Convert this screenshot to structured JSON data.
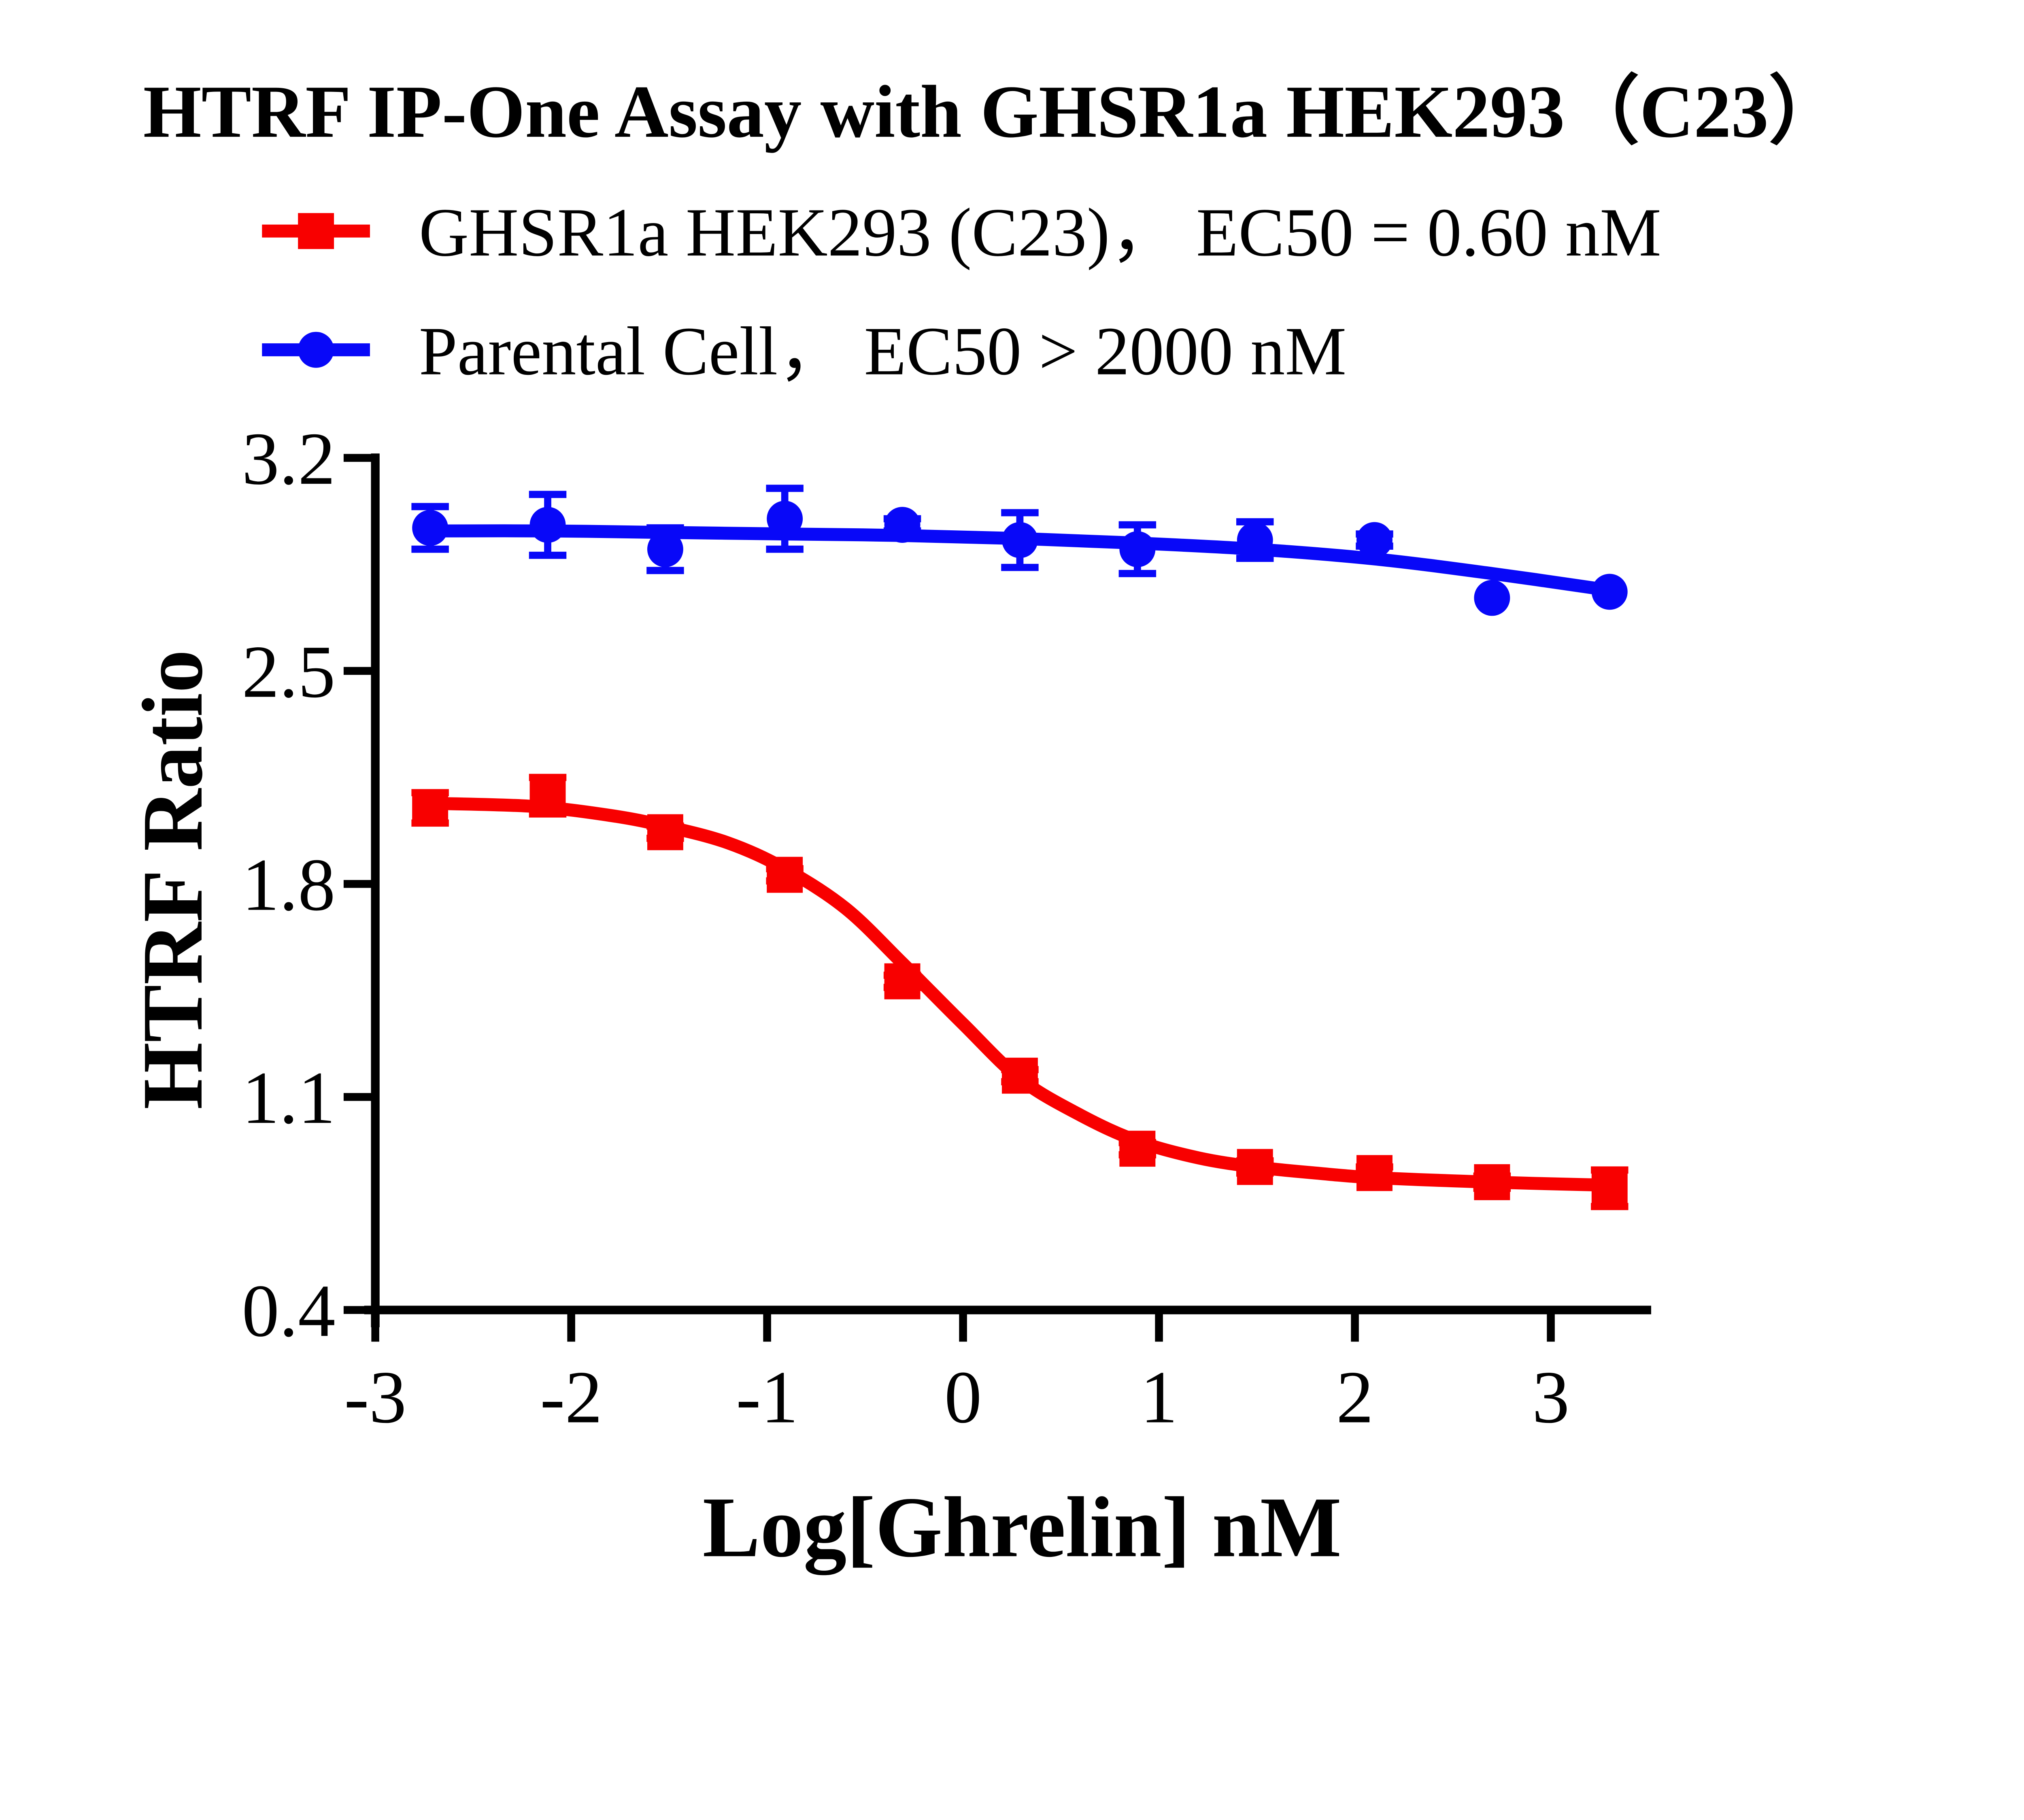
{
  "title": "HTRF IP-One Assay with GHSR1a HEK293（C23）",
  "colors": {
    "red_series": "#f80000",
    "blue_series": "#0808f8",
    "axis": "#000000",
    "background": "#ffffff"
  },
  "legend": [
    {
      "label": "GHSR1a HEK293 (C23)， EC50 = 0.60 nM",
      "marker": "square",
      "color": "#f80000"
    },
    {
      "label": "Parental Cell， EC50 > 2000 nM",
      "marker": "circle",
      "color": "#0808f8"
    }
  ],
  "chart_data": {
    "type": "scatter",
    "title": "HTRF IP-One Assay with GHSR1a HEK293（C23）",
    "xlabel": "Log[Ghrelin] nM",
    "ylabel": "HTRF Ratio",
    "xlim": [
      -3.0,
      3.52
    ],
    "ylim": [
      0.4,
      3.2
    ],
    "grid": false,
    "legend_position": "top-left",
    "x_ticks": [
      -3,
      -2,
      -1,
      0,
      1,
      2,
      3
    ],
    "x_tick_labels": [
      "-3",
      "-2",
      "-1",
      "0",
      "1",
      "2",
      "3"
    ],
    "y_ticks": [
      0.4,
      1.1,
      1.8,
      2.5,
      3.2
    ],
    "y_tick_labels": [
      "0.4",
      "1.1",
      "1.8",
      "2.5",
      "3.2"
    ],
    "series": [
      {
        "id": "ghsr1a-hek293-c23",
        "name": "GHSR1a HEK293 (C23)",
        "ec50_label": "EC50 = 0.60 nM",
        "color": "#f80000",
        "marker": "square",
        "x": [
          -2.72,
          -2.12,
          -1.52,
          -0.91,
          -0.31,
          0.29,
          0.89,
          1.49,
          2.1,
          2.7,
          3.3
        ],
        "y": [
          2.05,
          2.09,
          1.97,
          1.83,
          1.48,
          1.17,
          0.93,
          0.87,
          0.85,
          0.82,
          0.8
        ],
        "err": [
          0.05,
          0.06,
          0.02,
          0.02,
          0.02,
          0.02,
          0.02,
          0.02,
          0.02,
          0.02,
          0.06
        ],
        "fit": [
          [
            -2.72,
            2.065
          ],
          [
            -2.2,
            2.055
          ],
          [
            -1.8,
            2.025
          ],
          [
            -1.52,
            1.99
          ],
          [
            -1.2,
            1.935
          ],
          [
            -0.91,
            1.85
          ],
          [
            -0.6,
            1.72
          ],
          [
            -0.31,
            1.54
          ],
          [
            0.0,
            1.34
          ],
          [
            0.29,
            1.16
          ],
          [
            0.6,
            1.04
          ],
          [
            0.89,
            0.955
          ],
          [
            1.2,
            0.9
          ],
          [
            1.49,
            0.87
          ],
          [
            1.8,
            0.85
          ],
          [
            2.1,
            0.835
          ],
          [
            2.7,
            0.82
          ],
          [
            3.3,
            0.81
          ]
        ]
      },
      {
        "id": "parental-cell",
        "name": "Parental Cell",
        "ec50_label": "EC50 > 2000 nM",
        "color": "#0808f8",
        "marker": "circle",
        "x": [
          -2.72,
          -2.12,
          -1.52,
          -0.91,
          -0.31,
          0.29,
          0.89,
          1.49,
          2.1,
          2.7,
          3.3
        ],
        "y": [
          2.97,
          2.98,
          2.9,
          3.0,
          2.98,
          2.93,
          2.9,
          2.93,
          2.93,
          2.74,
          2.76
        ],
        "err": [
          0.07,
          0.1,
          0.07,
          0.1,
          0.02,
          0.09,
          0.08,
          0.06,
          0.02,
          0,
          0
        ],
        "fit": [
          [
            -2.72,
            2.96
          ],
          [
            -2.12,
            2.96
          ],
          [
            -1.52,
            2.955
          ],
          [
            -0.91,
            2.95
          ],
          [
            -0.31,
            2.945
          ],
          [
            0.29,
            2.935
          ],
          [
            0.89,
            2.92
          ],
          [
            1.49,
            2.9
          ],
          [
            2.1,
            2.868
          ],
          [
            2.7,
            2.82
          ],
          [
            3.3,
            2.765
          ]
        ]
      }
    ]
  }
}
